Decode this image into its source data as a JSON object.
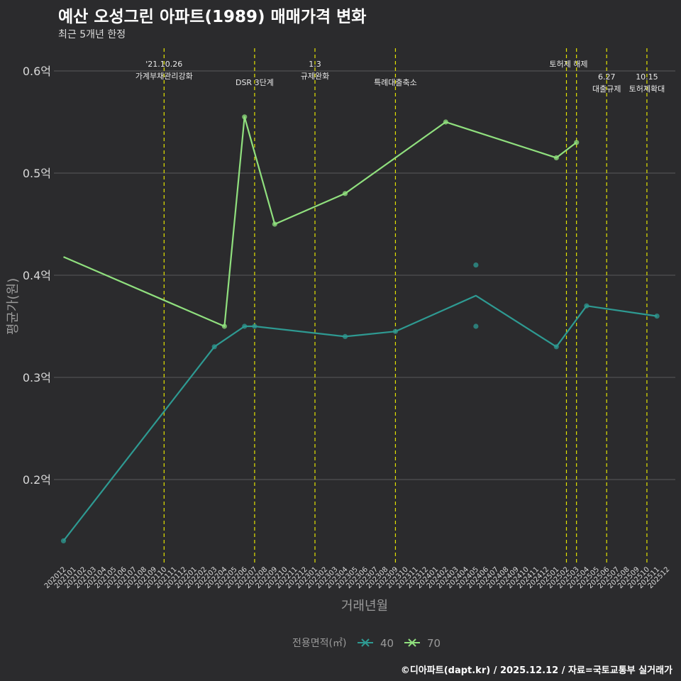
{
  "header": {
    "title": "예산 오성그린 아파트(1989) 매매가격 변화",
    "subtitle": "최근 5개년 한정",
    "caption": "©디아파트(dapt.kr) / 2025.12.12 / 자료=국토교통부 실거래가"
  },
  "colors": {
    "background": "#2b2b2d",
    "grid": "#5a5a5a",
    "series_40": "#2e9a92",
    "series_70": "#90e07e",
    "event_line": "#e4e400",
    "axis_text": "#d8d8d8",
    "axis_title": "#9a9a9a"
  },
  "chart_data": {
    "type": "line",
    "title": "예산 오성그린 아파트(1989) 매매가격 변화",
    "xlabel": "거래년월",
    "ylabel": "평균가(원)",
    "ylim": [
      0.125,
      0.625
    ],
    "yticks": [
      {
        "value": 0.2,
        "label": "0.2억"
      },
      {
        "value": 0.3,
        "label": "0.3억"
      },
      {
        "value": 0.4,
        "label": "0.4억"
      },
      {
        "value": 0.5,
        "label": "0.5억"
      },
      {
        "value": 0.6,
        "label": "0.6억"
      }
    ],
    "categories": [
      "202012",
      "202101",
      "202102",
      "202103",
      "202104",
      "202105",
      "202106",
      "202107",
      "202108",
      "202109",
      "202110",
      "202111",
      "202112",
      "202201",
      "202202",
      "202203",
      "202204",
      "202205",
      "202206",
      "202207",
      "202208",
      "202209",
      "202210",
      "202211",
      "202212",
      "202301",
      "202302",
      "202303",
      "202304",
      "202305",
      "202306",
      "202307",
      "202308",
      "202309",
      "202310",
      "202311",
      "202312",
      "202401",
      "202402",
      "202403",
      "202404",
      "202405",
      "202406",
      "202407",
      "202408",
      "202409",
      "202410",
      "202411",
      "202412",
      "202501",
      "202502",
      "202503",
      "202504",
      "202505",
      "202506",
      "202507",
      "202508",
      "202509",
      "202510",
      "202511",
      "202512"
    ],
    "legend_title": "전용면적(㎡)",
    "legend_position": "bottom",
    "series": [
      {
        "name": "40",
        "color": "#2e9a92",
        "line": [
          [
            "202012",
            0.14
          ],
          [
            "202203",
            0.33
          ],
          [
            "202206",
            0.35
          ],
          [
            "202207",
            0.35
          ],
          [
            "202304",
            0.34
          ],
          [
            "202309",
            0.345
          ],
          [
            "202405",
            0.38
          ],
          [
            "202501",
            0.33
          ],
          [
            "202504",
            0.37
          ],
          [
            "202511",
            0.36
          ]
        ],
        "points": [
          [
            "202012",
            0.14
          ],
          [
            "202203",
            0.33
          ],
          [
            "202206",
            0.35
          ],
          [
            "202207",
            0.35
          ],
          [
            "202304",
            0.34
          ],
          [
            "202309",
            0.345
          ],
          [
            "202405",
            0.41
          ],
          [
            "202405",
            0.35
          ],
          [
            "202501",
            0.33
          ],
          [
            "202504",
            0.37
          ],
          [
            "202511",
            0.36
          ]
        ]
      },
      {
        "name": "70",
        "color": "#90e07e",
        "line": [
          [
            "202012",
            0.418
          ],
          [
            "202204",
            0.35
          ],
          [
            "202206",
            0.555
          ],
          [
            "202209",
            0.45
          ],
          [
            "202304",
            0.48
          ],
          [
            "202402",
            0.55
          ],
          [
            "202501",
            0.515
          ],
          [
            "202503",
            0.53
          ]
        ],
        "points": [
          [
            "202204",
            0.35
          ],
          [
            "202206",
            0.555
          ],
          [
            "202209",
            0.45
          ],
          [
            "202304",
            0.48
          ],
          [
            "202402",
            0.55
          ],
          [
            "202501",
            0.515
          ],
          [
            "202503",
            0.53
          ]
        ]
      }
    ],
    "events": [
      {
        "x": "202110",
        "label_lines": [
          "'21.10.26",
          "가계부채관리강화"
        ],
        "row": 0
      },
      {
        "x": "202207",
        "label_lines": [
          "DSR 3단계"
        ],
        "row": 1
      },
      {
        "x": "202301",
        "label_lines": [
          "1.3",
          "규제완화"
        ],
        "row": 0
      },
      {
        "x": "202309",
        "label_lines": [
          "특례대출축소"
        ],
        "row": 1
      },
      {
        "x": "202502",
        "label_lines": [
          "토허제 해제"
        ],
        "row": 0,
        "anchor": "end"
      },
      {
        "x": "202503",
        "label_lines": [],
        "row": 0
      },
      {
        "x": "202506",
        "label_lines": [
          "6.27",
          "대출규제"
        ],
        "row": 1
      },
      {
        "x": "202510",
        "label_lines": [
          "10.15",
          "토허제확대"
        ],
        "row": 1
      }
    ]
  }
}
